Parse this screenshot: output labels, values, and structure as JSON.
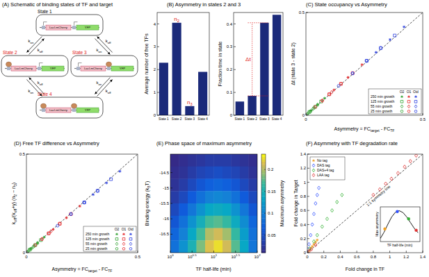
{
  "diagram": {
    "title": "(A) Schematic of binding states of TF and target",
    "states": [
      {
        "label": "State 1",
        "color": "#000000",
        "tf_bound": [
          false,
          false
        ]
      },
      {
        "label": "State 2",
        "color": "#e02020",
        "tf_bound": [
          true,
          false
        ]
      },
      {
        "label": "State 3",
        "color": "#e02020",
        "tf_bound": [
          false,
          true
        ]
      },
      {
        "label": "State 4",
        "color": "#e02020",
        "tf_bound": [
          true,
          true
        ]
      }
    ],
    "gene_labels": [
      "LacI-mCherry",
      "YFP"
    ],
    "rates": {
      "on": [
        "k",
        {
          "sub": "on"
        }
      ],
      "off": [
        "k",
        {
          "sub": "off"
        }
      ]
    }
  },
  "chart_data": [
    {
      "type": "bar",
      "title": "(B) Asymmetry in states 2 and 3",
      "ylabel": "Average number of free TFs",
      "categories": [
        "State 1",
        "State 2",
        "State 3",
        "State 4"
      ],
      "values": [
        2.3,
        4.05,
        0.4,
        1.9
      ],
      "color": "#1b2a7a",
      "ylim": [
        0,
        4.5
      ],
      "yticks": [
        0,
        1,
        2,
        3,
        4
      ],
      "annotations": [
        {
          "text": [
            "n",
            {
              "sub": "2"
            }
          ],
          "category": "State 2",
          "color": "#e02020"
        },
        {
          "text": [
            "n",
            {
              "sub": "3"
            }
          ],
          "category": "State 3",
          "color": "#e02020"
        }
      ]
    },
    {
      "type": "bar",
      "ylabel": "Fraction time in state",
      "categories": [
        "State 1",
        "State 2",
        "State 3",
        "State 4"
      ],
      "values": [
        0.06,
        0.085,
        0.405,
        0.44
      ],
      "color": "#1b2a7a",
      "ylim": [
        0,
        0.45
      ],
      "yticks": [
        0,
        0.1,
        0.2,
        0.3,
        0.4
      ],
      "annotations": [
        {
          "text": "Δt",
          "between": [
            "State 2",
            "State 3"
          ],
          "color": "#e02020"
        }
      ]
    },
    {
      "type": "scatter",
      "title": "(C) State occupancy vs Asymmetry",
      "xlabel": [
        "Asymmetry = FC",
        {
          "sub": "target"
        },
        " - FC",
        {
          "sub": "TF"
        }
      ],
      "ylabel": "Δt (state 3 - state 2)",
      "xlim": [
        0,
        0.5
      ],
      "ylim": [
        0,
        0.5
      ],
      "xticks": [
        0,
        0.5
      ],
      "yticks": [
        0,
        0.5
      ],
      "legend": "lower right",
      "legend_columns": [
        {
          "name": "O2",
          "color": "#2ca02c"
        },
        {
          "name": "O1",
          "color": "#e4262a"
        },
        {
          "name": "Oid",
          "color": "#2b3fe0"
        }
      ],
      "series": [
        {
          "name": "250 min growth",
          "marker": "star",
          "x": [
            [
              0.02,
              0.05,
              0.08
            ],
            [
              0.12,
              0.18,
              0.24
            ],
            [
              0.3,
              0.36,
              0.42
            ]
          ],
          "values": [
            [
              0.022,
              0.052,
              0.083
            ],
            [
              0.123,
              0.184,
              0.246
            ],
            [
              0.306,
              0.368,
              0.43
            ]
          ]
        },
        {
          "name": "125 min growth",
          "marker": "square",
          "x": [
            [
              0.015,
              0.04,
              0.065
            ],
            [
              0.1,
              0.15,
              0.2
            ],
            [
              0.26,
              0.32,
              0.38
            ]
          ],
          "values": [
            [
              0.016,
              0.041,
              0.067
            ],
            [
              0.102,
              0.153,
              0.205
            ],
            [
              0.265,
              0.327,
              0.388
            ]
          ]
        },
        {
          "name": "55 min growth",
          "marker": "diamond",
          "x": [
            [
              0.01,
              0.03,
              0.05
            ],
            [
              0.07,
              0.11,
              0.15
            ],
            [
              0.2,
              0.26,
              0.32
            ]
          ],
          "values": [
            [
              0.01,
              0.031,
              0.051
            ],
            [
              0.071,
              0.112,
              0.153
            ],
            [
              0.204,
              0.265,
              0.327
            ]
          ]
        },
        {
          "name": "25 min growth",
          "marker": "circle",
          "x": [
            [
              0.005,
              0.02,
              0.035
            ],
            [
              0.04,
              0.07,
              0.1
            ],
            [
              0.14,
              0.2,
              0.26
            ]
          ],
          "values": [
            [
              0.005,
              0.02,
              0.036
            ],
            [
              0.041,
              0.071,
              0.102
            ],
            [
              0.143,
              0.204,
              0.265
            ]
          ]
        }
      ]
    },
    {
      "type": "scatter",
      "title": "(D) Free TF difference vs Asymmetry",
      "xlabel": [
        "Asymmetry = FC",
        {
          "sub": "target"
        },
        " - FC",
        {
          "sub": "TF"
        }
      ],
      "ylabel": [
        "k",
        {
          "sub": "off"
        },
        "/(k",
        {
          "sub": "off"
        },
        "+γ) (n",
        {
          "sub": "2"
        },
        " − n",
        {
          "sub": "3"
        },
        ")"
      ],
      "xlim": [
        0,
        0.5
      ],
      "ylim": [
        0,
        0.5
      ],
      "xticks": [
        0,
        0.5
      ],
      "yticks": [
        0,
        0.5
      ],
      "legend": "lower right",
      "legend_columns": [
        {
          "name": "O2",
          "color": "#2ca02c"
        },
        {
          "name": "O1",
          "color": "#e4262a"
        },
        {
          "name": "Oid",
          "color": "#2b3fe0"
        }
      ],
      "series": [
        {
          "name": "250 min growth",
          "marker": "star",
          "x": [
            [
              0.02,
              0.05,
              0.08
            ],
            [
              0.12,
              0.18,
              0.24
            ],
            [
              0.3,
              0.36,
              0.42
            ]
          ],
          "values": [
            [
              0.02,
              0.049,
              0.079
            ],
            [
              0.118,
              0.177,
              0.236
            ],
            [
              0.295,
              0.354,
              0.413
            ]
          ]
        },
        {
          "name": "125 min growth",
          "marker": "square",
          "x": [
            [
              0.015,
              0.04,
              0.065
            ],
            [
              0.1,
              0.15,
              0.2
            ],
            [
              0.26,
              0.32,
              0.38
            ]
          ],
          "values": [
            [
              0.015,
              0.039,
              0.064
            ],
            [
              0.098,
              0.147,
              0.196
            ],
            [
              0.255,
              0.314,
              0.373
            ]
          ]
        },
        {
          "name": "55 min growth",
          "marker": "diamond",
          "x": [
            [
              0.01,
              0.03,
              0.05
            ],
            [
              0.07,
              0.11,
              0.15
            ],
            [
              0.2,
              0.26,
              0.32
            ]
          ],
          "values": [
            [
              0.01,
              0.029,
              0.049
            ],
            [
              0.069,
              0.108,
              0.147
            ],
            [
              0.196,
              0.255,
              0.314
            ]
          ]
        },
        {
          "name": "25 min growth",
          "marker": "circle",
          "x": [
            [
              0.005,
              0.02,
              0.035
            ],
            [
              0.04,
              0.07,
              0.1
            ],
            [
              0.14,
              0.2,
              0.26
            ]
          ],
          "values": [
            [
              0.005,
              0.02,
              0.034
            ],
            [
              0.039,
              0.069,
              0.098
            ],
            [
              0.137,
              0.196,
              0.255
            ]
          ]
        }
      ]
    },
    {
      "type": "heatmap",
      "title": "(E) Phase space of maximum asymmetry",
      "xlabel": "TF half-life (min)",
      "ylabel": [
        "Binding energy (k",
        {
          "sub": "B"
        },
        "T)"
      ],
      "log": "x",
      "xlim": [
        1,
        100
      ],
      "ylim": [
        -13.9,
        -17.1
      ],
      "xticks": [
        {
          "value": 1,
          "label": [
            "10",
            {
              "sup": "0"
            }
          ]
        },
        {
          "value": 3.162,
          "label": [
            "10",
            {
              "sup": "0.5"
            }
          ]
        },
        {
          "value": 10,
          "label": [
            "10",
            {
              "sup": "1"
            }
          ]
        },
        {
          "value": 31.62,
          "label": [
            "10",
            {
              "sup": "1.5"
            }
          ]
        },
        {
          "value": 100,
          "label": [
            "10",
            {
              "sup": "2"
            }
          ]
        }
      ],
      "yticks": [
        -14.5,
        -15,
        -15.5,
        -16,
        -16.5
      ],
      "x_edges": [
        1,
        1.585,
        2.512,
        3.981,
        6.31,
        10,
        15.85,
        25.12,
        39.81,
        63.1,
        100
      ],
      "y_edges": [
        -13.9,
        -14.3,
        -14.7,
        -15.1,
        -15.5,
        -15.9,
        -16.3,
        -16.7,
        -17.1
      ],
      "cells": [
        [
          0.01,
          0.015,
          0.02,
          0.025,
          0.03,
          0.03,
          0.03,
          0.025,
          0.02,
          0.015
        ],
        [
          0.015,
          0.02,
          0.03,
          0.04,
          0.045,
          0.05,
          0.045,
          0.04,
          0.03,
          0.02
        ],
        [
          0.02,
          0.03,
          0.045,
          0.06,
          0.07,
          0.075,
          0.07,
          0.06,
          0.045,
          0.03
        ],
        [
          0.03,
          0.045,
          0.065,
          0.085,
          0.1,
          0.105,
          0.1,
          0.085,
          0.065,
          0.045
        ],
        [
          0.045,
          0.065,
          0.09,
          0.115,
          0.135,
          0.14,
          0.135,
          0.115,
          0.09,
          0.06
        ],
        [
          0.06,
          0.085,
          0.115,
          0.145,
          0.17,
          0.175,
          0.165,
          0.14,
          0.11,
          0.075
        ],
        [
          0.075,
          0.1,
          0.135,
          0.17,
          0.2,
          0.21,
          0.195,
          0.165,
          0.125,
          0.085
        ],
        [
          0.085,
          0.115,
          0.15,
          0.185,
          0.215,
          0.225,
          0.21,
          0.175,
          0.135,
          0.09
        ]
      ],
      "colorbar": {
        "label": "Maximum asymmetry",
        "range": [
          0.01,
          0.235
        ],
        "ticks": [
          0.05,
          0.1,
          0.15,
          0.2
        ]
      }
    },
    {
      "type": "scatter",
      "title": "(F) Asymmetry with TF degradation rate",
      "xlabel": "Fold change in TF",
      "ylabel": "Fold change in Target",
      "xlim": [
        0,
        1.4
      ],
      "ylim": [
        0,
        1.4
      ],
      "xticks": [
        0,
        0.2,
        0.4,
        0.6,
        0.8,
        1,
        1.2,
        1.4
      ],
      "yticks": [
        0,
        0.2,
        0.4,
        0.6,
        0.8,
        1,
        1.2,
        1.4
      ],
      "legend": "upper left",
      "annotations": [
        {
          "text": "1:1 symmetry line"
        }
      ],
      "series": [
        {
          "name": "No tag",
          "color": "#f0a020",
          "marker": "star",
          "x": [
            0.02,
            0.04,
            0.06,
            0.08,
            0.1,
            0.12
          ],
          "values": [
            0.03,
            0.06,
            0.09,
            0.12,
            0.15,
            0.18
          ]
        },
        {
          "name": "DAS tag",
          "color": "#3050ff",
          "marker": "diamond",
          "x": [
            0.01,
            0.02,
            0.04,
            0.06,
            0.08,
            0.1,
            0.12,
            0.14
          ],
          "values": [
            0.05,
            0.12,
            0.25,
            0.4,
            0.55,
            0.7,
            0.82,
            0.92
          ]
        },
        {
          "name": "DAS+4 tag",
          "color": "#30b030",
          "marker": "diamond",
          "x": [
            0.03,
            0.08,
            0.12,
            0.18,
            0.24,
            0.3,
            0.36,
            0.42
          ],
          "values": [
            0.06,
            0.16,
            0.25,
            0.37,
            0.48,
            0.6,
            0.72,
            0.82
          ]
        },
        {
          "name": "LAA tag",
          "color": "#e03030",
          "marker": "diamond",
          "x": [
            0.02,
            0.05,
            0.1,
            0.8,
            0.88,
            0.95,
            1.02,
            1.1,
            1.18,
            1.25,
            1.32
          ],
          "values": [
            0.02,
            0.05,
            0.11,
            0.82,
            0.9,
            0.98,
            1.05,
            1.13,
            1.22,
            1.3,
            1.38
          ]
        }
      ]
    },
    {
      "type": "line",
      "xlabel": "TF half-life (min)",
      "ylabel": "Max asymmetry",
      "tick_labels": false,
      "xlim": [
        0,
        1.05
      ],
      "ylim": [
        0,
        1.1
      ],
      "series": [
        {
          "type": "line",
          "color": "#000000",
          "x": [
            0,
            0.1,
            0.2,
            0.3,
            0.4,
            0.5,
            0.6,
            0.7,
            0.8,
            0.9,
            1
          ],
          "values": [
            0.1,
            0.3,
            0.55,
            0.78,
            0.93,
            0.98,
            0.92,
            0.78,
            0.6,
            0.42,
            0.28
          ]
        },
        {
          "type": "scatter",
          "marker": "circle",
          "x": [
            0.12,
            0.45,
            0.75,
            0.95
          ],
          "values": [
            0.4,
            0.95,
            0.72,
            0.36
          ],
          "colors": [
            "#f0a020",
            "#3050ff",
            "#30b030",
            "#e03030"
          ]
        }
      ]
    }
  ]
}
